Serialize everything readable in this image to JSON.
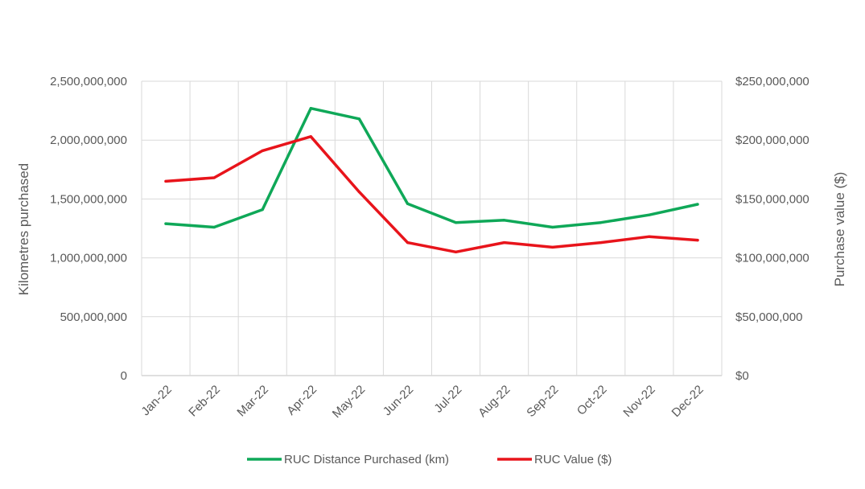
{
  "chart_data": {
    "type": "line",
    "categories": [
      "Jan-22",
      "Feb-22",
      "Mar-22",
      "Apr-22",
      "May-22",
      "Jun-22",
      "Jul-22",
      "Aug-22",
      "Sep-22",
      "Oct-22",
      "Nov-22",
      "Dec-22"
    ],
    "series": [
      {
        "name": "RUC Distance Purchased (km)",
        "axis": "left",
        "color": "#0fa858",
        "values": [
          1290000000,
          1260000000,
          1410000000,
          2270000000,
          2180000000,
          1460000000,
          1300000000,
          1320000000,
          1260000000,
          1300000000,
          1365000000,
          1455000000
        ]
      },
      {
        "name": "RUC Value ($)",
        "axis": "right",
        "color": "#e8141b",
        "values": [
          165000000,
          168000000,
          191000000,
          203000000,
          156000000,
          113000000,
          105000000,
          113000000,
          109000000,
          113000000,
          118000000,
          115000000
        ]
      }
    ],
    "ylabel_left": "Kilometres purchased",
    "ylabel_right": "Purchase value ($)",
    "ylim_left": [
      0,
      2500000000
    ],
    "ylim_right": [
      0,
      250000000
    ],
    "yticks_left": [
      "0",
      "500,000,000",
      "1,000,000,000",
      "1,500,000,000",
      "2,000,000,000",
      "2,500,000,000"
    ],
    "yticks_right": [
      "$0",
      "$50,000,000",
      "$100,000,000",
      "$150,000,000",
      "$200,000,000",
      "$250,000,000"
    ],
    "grid": true,
    "legend_position": "bottom"
  }
}
